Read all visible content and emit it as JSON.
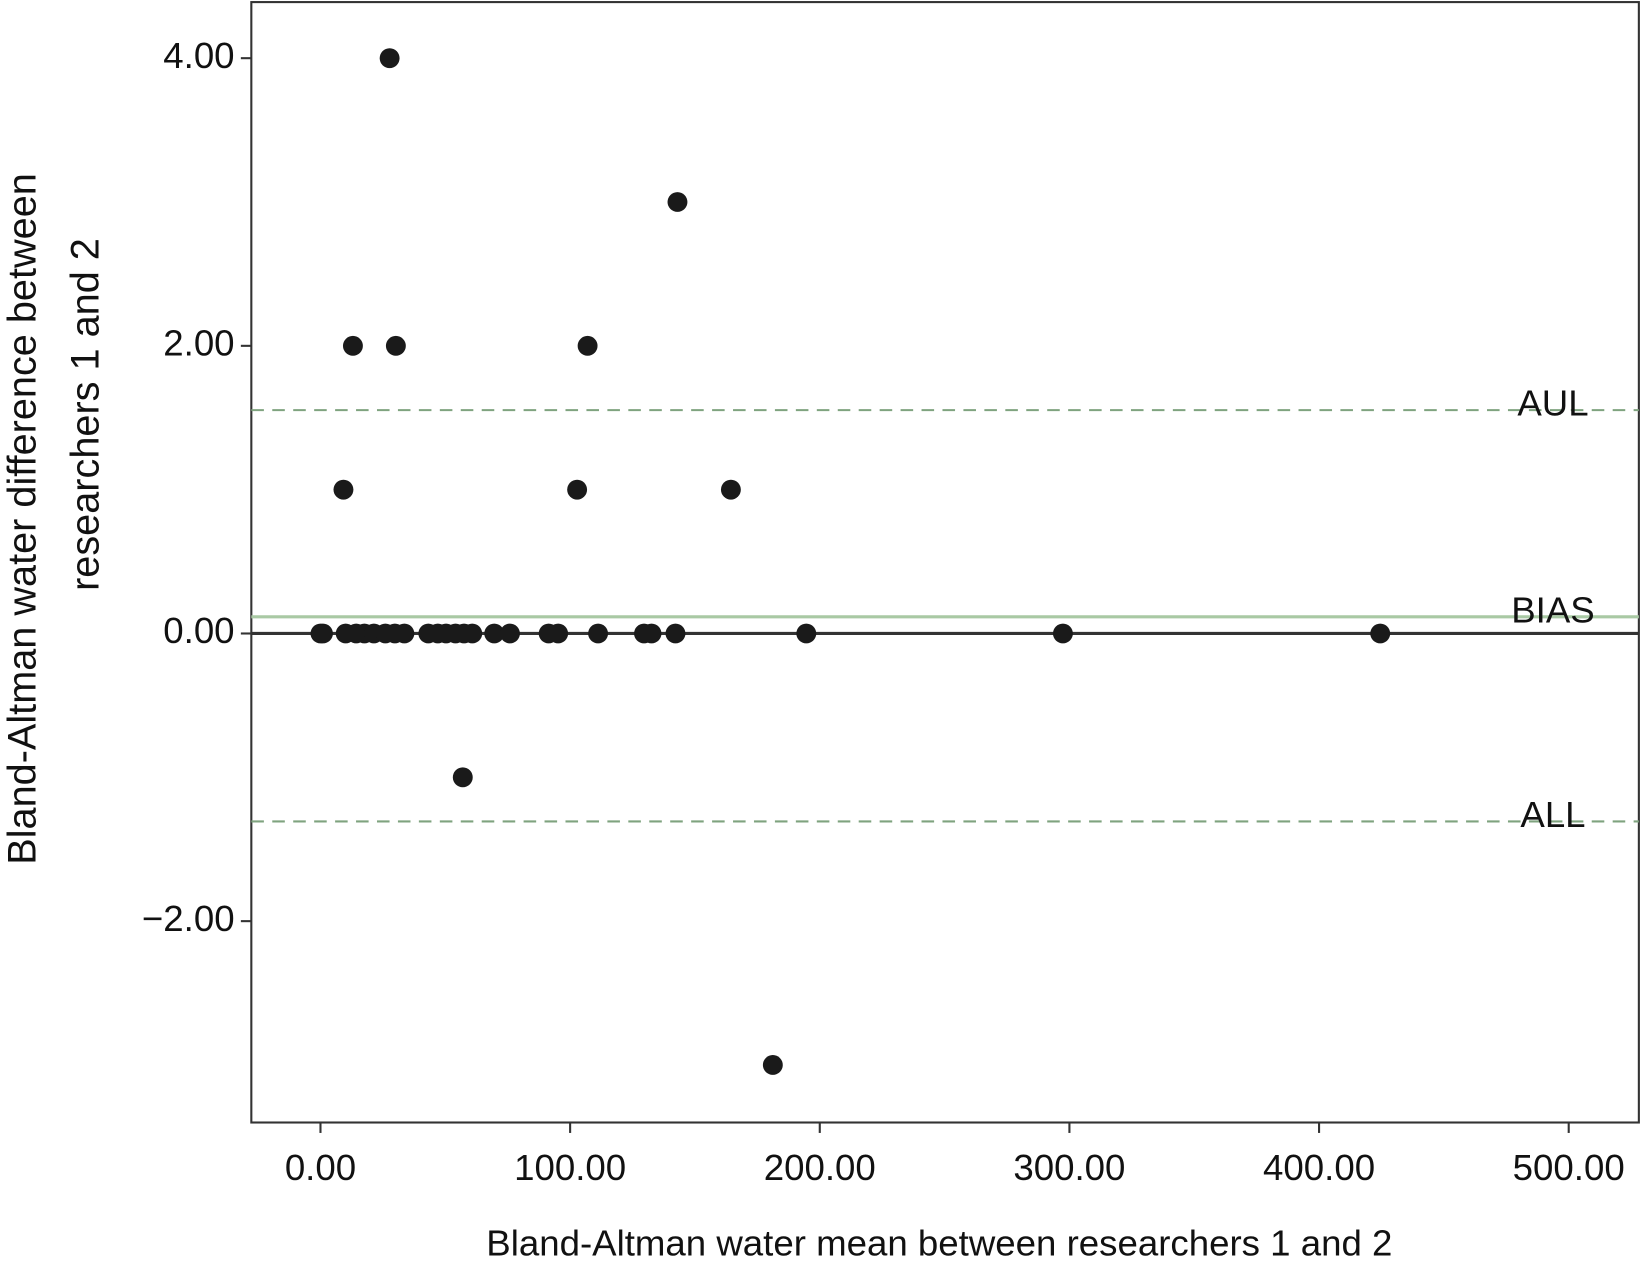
{
  "chart_data": {
    "type": "scatter",
    "xlabel": "Bland-Altman water mean between researchers 1 and 2",
    "ylabel": [
      "Bland-Altman water difference between",
      "researchers 1 and 2"
    ],
    "x": [
      27.7,
      143.0,
      13.0,
      30.2,
      107.0,
      9.2,
      102.8,
      164.4,
      57.0,
      181.2,
      0,
      1,
      10.1,
      14.3,
      17.6,
      21.4,
      26.0,
      29.8,
      33.6,
      43.2,
      47.0,
      50.3,
      54.1,
      57.5,
      60.8,
      69.6,
      75.9,
      91.4,
      95.2,
      111.2,
      129.6,
      132.6,
      142.2,
      194.6,
      297.4,
      424.5
    ],
    "values": [
      4,
      3,
      2,
      2,
      2,
      1,
      1,
      1,
      -1,
      -3,
      0,
      0,
      0,
      0,
      0,
      0,
      0,
      0,
      0,
      0,
      0,
      0,
      0,
      0,
      0,
      0,
      0,
      0,
      0,
      0,
      0,
      0,
      0,
      0,
      0,
      0
    ],
    "color": "#1a1a1a",
    "xlim": [
      -27.7,
      528.1
    ],
    "ylim": [
      -3.4,
      4.39
    ],
    "xticks": [
      {
        "value": 0,
        "label": "0.00"
      },
      {
        "value": 100,
        "label": "100.00"
      },
      {
        "value": 200,
        "label": "200.00"
      },
      {
        "value": 300,
        "label": "300.00"
      },
      {
        "value": 400,
        "label": "400.00"
      },
      {
        "value": 500,
        "label": "500.00"
      }
    ],
    "yticks": [
      {
        "value": -2,
        "label": "−2.00"
      },
      {
        "value": 0,
        "label": "0.00"
      },
      {
        "value": 2,
        "label": "2.00"
      },
      {
        "value": 4,
        "label": "4.00"
      }
    ],
    "reference_lines": [
      {
        "value": 0,
        "color": "#333333",
        "dashed": false
      },
      {
        "label": "AUL",
        "value": 1.553,
        "color": "#7fa37f",
        "dashed": true
      },
      {
        "label": "BIAS",
        "value": 0.116,
        "color": "#a9c9a4",
        "dashed": false
      },
      {
        "label": "ALL",
        "value": -1.307,
        "color": "#7fa37f",
        "dashed": true
      }
    ]
  }
}
